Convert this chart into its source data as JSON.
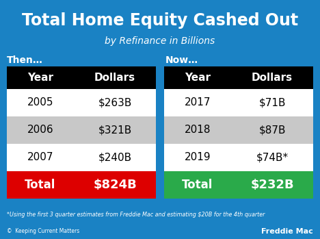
{
  "title": "Total Home Equity Cashed Out",
  "subtitle": "by Refinance in Billions",
  "then_label": "Then…",
  "now_label": "Now…",
  "bg_color": "#1a82c4",
  "table_header_bg": "#000000",
  "table_header_fg": "#ffffff",
  "row_colors": [
    "#ffffff",
    "#c8c8c8",
    "#ffffff"
  ],
  "total_left_bg": "#dd0000",
  "total_right_bg": "#2aaa4a",
  "total_fg": "#ffffff",
  "left_years": [
    "2005",
    "2006",
    "2007"
  ],
  "left_dollars": [
    "$263B",
    "$321B",
    "$240B"
  ],
  "left_total_year": "Total",
  "left_total_dollars": "$824B",
  "right_years": [
    "2017",
    "2018",
    "2019"
  ],
  "right_dollars": [
    "$71B",
    "$87B",
    "$74B*"
  ],
  "right_total_year": "Total",
  "right_total_dollars": "$232B",
  "footnote": "*Using the first 3 quarter estimates from Freddie Mac and estimating $20B for the 4th quarter",
  "source": "Freddie Mac",
  "logo_text": "©  Keeping Current Matters"
}
